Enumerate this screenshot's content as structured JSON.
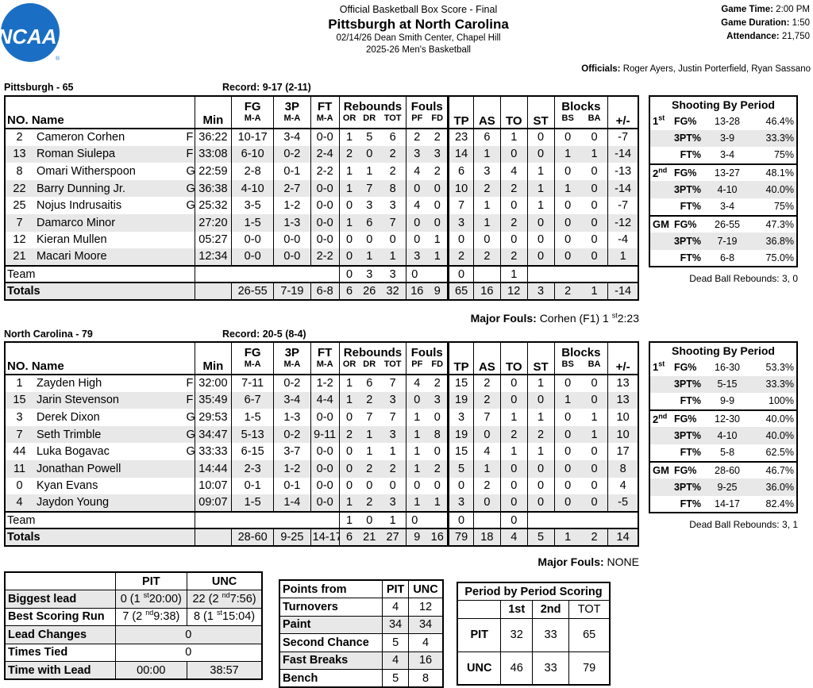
{
  "header": {
    "title_line1": "Official Basketball Box Score - Final",
    "matchup": "Pittsburgh at North Carolina",
    "date_venue": "02/14/26 Dean Smith Center, Chapel Hill",
    "season": "2025-26 Men's Basketball",
    "game_time_label": "Game Time:",
    "game_time": "2:00 PM",
    "duration_label": "Game Duration:",
    "duration": "1:50",
    "attendance_label": "Attendance:",
    "attendance": "21,750",
    "officials_label": "Officials:",
    "officials": "Roger Ayers, Justin Porterfield, Ryan Sassano",
    "logo_text": "NCAA"
  },
  "labels": {
    "no": "NO.",
    "name": "Name",
    "min": "Min",
    "fg": "FG",
    "p3": "3P",
    "ft": "FT",
    "rebounds": "Rebounds",
    "fouls": "Fouls",
    "tp": "TP",
    "as": "AS",
    "to": "TO",
    "st": "ST",
    "blocks": "Blocks",
    "pm": "+/-",
    "ma": "M-A",
    "or": "OR",
    "dr": "DR",
    "tot": "TOT",
    "pf": "PF",
    "fd": "FD",
    "bs": "BS",
    "ba": "BA",
    "team": "Team",
    "totals": "Totals",
    "shooting_by_period": "Shooting By Period",
    "major_fouls": "Major Fouls:",
    "fg_pct": "FG%",
    "p3_pct": "3PT%",
    "ft_pct": "FT%",
    "gm": "GM"
  },
  "teams": [
    {
      "header": "Pittsburgh - 65",
      "record": "Record: 9-17 (2-11)",
      "players": [
        {
          "no": "2",
          "name": "Cameron Corhen",
          "pos": "F",
          "min": "36:22",
          "fg": "10-17",
          "p3": "3-4",
          "ft": "0-0",
          "or": "1",
          "dr": "5",
          "tot": "6",
          "pf": "2",
          "fd": "2",
          "tp": "23",
          "as": "6",
          "to": "1",
          "st": "0",
          "bs": "0",
          "ba": "0",
          "pm": "-7"
        },
        {
          "no": "13",
          "name": "Roman Siulepa",
          "pos": "F",
          "min": "33:08",
          "fg": "6-10",
          "p3": "0-2",
          "ft": "2-4",
          "or": "2",
          "dr": "0",
          "tot": "2",
          "pf": "3",
          "fd": "3",
          "tp": "14",
          "as": "1",
          "to": "0",
          "st": "0",
          "bs": "1",
          "ba": "1",
          "pm": "-14"
        },
        {
          "no": "8",
          "name": "Omari Witherspoon",
          "pos": "G",
          "min": "22:59",
          "fg": "2-8",
          "p3": "0-1",
          "ft": "2-2",
          "or": "1",
          "dr": "1",
          "tot": "2",
          "pf": "4",
          "fd": "2",
          "tp": "6",
          "as": "3",
          "to": "4",
          "st": "1",
          "bs": "0",
          "ba": "0",
          "pm": "-13"
        },
        {
          "no": "22",
          "name": "Barry Dunning Jr.",
          "pos": "G",
          "min": "36:38",
          "fg": "4-10",
          "p3": "2-7",
          "ft": "0-0",
          "or": "1",
          "dr": "7",
          "tot": "8",
          "pf": "0",
          "fd": "0",
          "tp": "10",
          "as": "2",
          "to": "2",
          "st": "1",
          "bs": "1",
          "ba": "0",
          "pm": "-14"
        },
        {
          "no": "25",
          "name": "Nojus Indrusaitis",
          "pos": "G",
          "min": "25:32",
          "fg": "3-5",
          "p3": "1-2",
          "ft": "0-0",
          "or": "0",
          "dr": "3",
          "tot": "3",
          "pf": "4",
          "fd": "0",
          "tp": "7",
          "as": "1",
          "to": "0",
          "st": "1",
          "bs": "0",
          "ba": "0",
          "pm": "-7"
        },
        {
          "no": "7",
          "name": "Damarco Minor",
          "pos": "",
          "min": "27:20",
          "fg": "1-5",
          "p3": "1-3",
          "ft": "0-0",
          "or": "1",
          "dr": "6",
          "tot": "7",
          "pf": "0",
          "fd": "0",
          "tp": "3",
          "as": "1",
          "to": "2",
          "st": "0",
          "bs": "0",
          "ba": "0",
          "pm": "-12"
        },
        {
          "no": "12",
          "name": "Kieran Mullen",
          "pos": "",
          "min": "05:27",
          "fg": "0-0",
          "p3": "0-0",
          "ft": "0-0",
          "or": "0",
          "dr": "0",
          "tot": "0",
          "pf": "0",
          "fd": "1",
          "tp": "0",
          "as": "0",
          "to": "0",
          "st": "0",
          "bs": "0",
          "ba": "0",
          "pm": "-4"
        },
        {
          "no": "21",
          "name": "Macari Moore",
          "pos": "",
          "min": "12:34",
          "fg": "0-0",
          "p3": "0-0",
          "ft": "2-2",
          "or": "0",
          "dr": "1",
          "tot": "1",
          "pf": "3",
          "fd": "1",
          "tp": "2",
          "as": "2",
          "to": "2",
          "st": "0",
          "bs": "0",
          "ba": "0",
          "pm": "1"
        }
      ],
      "team_row": {
        "or": "0",
        "dr": "3",
        "tot": "3",
        "pf": "0",
        "tp": "0",
        "to": "1"
      },
      "totals": {
        "fg": "26-55",
        "p3": "7-19",
        "ft": "6-8",
        "or": "6",
        "dr": "26",
        "tot": "32",
        "pf": "16",
        "fd": "9",
        "tp": "65",
        "as": "16",
        "to": "12",
        "st": "3",
        "bs": "2",
        "ba": "1",
        "pm": "-14"
      },
      "major_fouls": "Corhen (F1) 1",
      "major_fouls_sup": "st",
      "major_fouls_time": "2:23",
      "shooting": [
        {
          "period": "1",
          "sup": "st",
          "fg": "13-28",
          "fg_pct": "46.4%",
          "p3": "3-9",
          "p3_pct": "33.3%",
          "ft": "3-4",
          "ft_pct": "75%"
        },
        {
          "period": "2",
          "sup": "nd",
          "fg": "13-27",
          "fg_pct": "48.1%",
          "p3": "4-10",
          "p3_pct": "40.0%",
          "ft": "3-4",
          "ft_pct": "75%"
        },
        {
          "period": "GM",
          "sup": "",
          "fg": "26-55",
          "fg_pct": "47.3%",
          "p3": "7-19",
          "p3_pct": "36.8%",
          "ft": "6-8",
          "ft_pct": "75.0%"
        }
      ],
      "dead_ball": "Dead Ball Rebounds: 3, 0"
    },
    {
      "header": "North Carolina - 79",
      "record": "Record: 20-5 (8-4)",
      "players": [
        {
          "no": "1",
          "name": "Zayden High",
          "pos": "F",
          "min": "32:00",
          "fg": "7-11",
          "p3": "0-2",
          "ft": "1-2",
          "or": "1",
          "dr": "6",
          "tot": "7",
          "pf": "4",
          "fd": "2",
          "tp": "15",
          "as": "2",
          "to": "0",
          "st": "1",
          "bs": "0",
          "ba": "0",
          "pm": "13"
        },
        {
          "no": "15",
          "name": "Jarin Stevenson",
          "pos": "F",
          "min": "35:49",
          "fg": "6-7",
          "p3": "3-4",
          "ft": "4-4",
          "or": "1",
          "dr": "2",
          "tot": "3",
          "pf": "0",
          "fd": "3",
          "tp": "19",
          "as": "2",
          "to": "0",
          "st": "0",
          "bs": "1",
          "ba": "0",
          "pm": "13"
        },
        {
          "no": "3",
          "name": "Derek Dixon",
          "pos": "G",
          "min": "29:53",
          "fg": "1-5",
          "p3": "1-3",
          "ft": "0-0",
          "or": "0",
          "dr": "7",
          "tot": "7",
          "pf": "1",
          "fd": "0",
          "tp": "3",
          "as": "7",
          "to": "1",
          "st": "1",
          "bs": "0",
          "ba": "1",
          "pm": "10"
        },
        {
          "no": "7",
          "name": "Seth Trimble",
          "pos": "G",
          "min": "34:47",
          "fg": "5-13",
          "p3": "0-2",
          "ft": "9-11",
          "or": "2",
          "dr": "1",
          "tot": "3",
          "pf": "1",
          "fd": "8",
          "tp": "19",
          "as": "0",
          "to": "2",
          "st": "2",
          "bs": "0",
          "ba": "1",
          "pm": "10"
        },
        {
          "no": "44",
          "name": "Luka Bogavac",
          "pos": "G",
          "min": "33:33",
          "fg": "6-15",
          "p3": "3-7",
          "ft": "0-0",
          "or": "0",
          "dr": "1",
          "tot": "1",
          "pf": "1",
          "fd": "0",
          "tp": "15",
          "as": "4",
          "to": "1",
          "st": "1",
          "bs": "0",
          "ba": "0",
          "pm": "17"
        },
        {
          "no": "11",
          "name": "Jonathan Powell",
          "pos": "",
          "min": "14:44",
          "fg": "2-3",
          "p3": "1-2",
          "ft": "0-0",
          "or": "0",
          "dr": "2",
          "tot": "2",
          "pf": "1",
          "fd": "2",
          "tp": "5",
          "as": "1",
          "to": "0",
          "st": "0",
          "bs": "0",
          "ba": "0",
          "pm": "8"
        },
        {
          "no": "0",
          "name": "Kyan Evans",
          "pos": "",
          "min": "10:07",
          "fg": "0-1",
          "p3": "0-1",
          "ft": "0-0",
          "or": "0",
          "dr": "0",
          "tot": "0",
          "pf": "0",
          "fd": "0",
          "tp": "0",
          "as": "2",
          "to": "0",
          "st": "0",
          "bs": "0",
          "ba": "0",
          "pm": "4"
        },
        {
          "no": "4",
          "name": "Jaydon Young",
          "pos": "",
          "min": "09:07",
          "fg": "1-5",
          "p3": "1-4",
          "ft": "0-0",
          "or": "1",
          "dr": "2",
          "tot": "3",
          "pf": "1",
          "fd": "1",
          "tp": "3",
          "as": "0",
          "to": "0",
          "st": "0",
          "bs": "0",
          "ba": "0",
          "pm": "-5"
        }
      ],
      "team_row": {
        "or": "1",
        "dr": "0",
        "tot": "1",
        "pf": "0",
        "tp": "0",
        "to": "0"
      },
      "totals": {
        "fg": "28-60",
        "p3": "9-25",
        "ft": "14-17",
        "or": "6",
        "dr": "21",
        "tot": "27",
        "pf": "9",
        "fd": "16",
        "tp": "79",
        "as": "18",
        "to": "4",
        "st": "5",
        "bs": "1",
        "ba": "2",
        "pm": "14"
      },
      "major_fouls": "NONE",
      "major_fouls_sup": "",
      "major_fouls_time": "",
      "shooting": [
        {
          "period": "1",
          "sup": "st",
          "fg": "16-30",
          "fg_pct": "53.3%",
          "p3": "5-15",
          "p3_pct": "33.3%",
          "ft": "9-9",
          "ft_pct": "100%"
        },
        {
          "period": "2",
          "sup": "nd",
          "fg": "12-30",
          "fg_pct": "40.0%",
          "p3": "4-10",
          "p3_pct": "40.0%",
          "ft": "5-8",
          "ft_pct": "62.5%"
        },
        {
          "period": "GM",
          "sup": "",
          "fg": "28-60",
          "fg_pct": "46.7%",
          "p3": "9-25",
          "p3_pct": "36.0%",
          "ft": "14-17",
          "ft_pct": "82.4%"
        }
      ],
      "dead_ball": "Dead Ball Rebounds: 3, 1"
    }
  ],
  "game_stats": {
    "col_pit": "PIT",
    "col_unc": "UNC",
    "biggest_lead_label": "Biggest lead",
    "biggest_lead_pit": "0 (1",
    "biggest_lead_pit_sup": "st",
    "biggest_lead_pit_time": "20:00)",
    "biggest_lead_unc": "22 (2",
    "biggest_lead_unc_sup": "nd",
    "biggest_lead_unc_time": "7:56)",
    "best_run_label": "Best Scoring Run",
    "best_run_pit": "7 (2",
    "best_run_pit_sup": "nd",
    "best_run_pit_time": "9:38)",
    "best_run_unc": "8 (1",
    "best_run_unc_sup": "st",
    "best_run_unc_time": "15:04)",
    "lead_changes_label": "Lead Changes",
    "lead_changes": "0",
    "times_tied_label": "Times Tied",
    "times_tied": "0",
    "time_lead_label": "Time with Lead",
    "time_lead_pit": "00:00",
    "time_lead_unc": "38:57"
  },
  "points_from": {
    "title": "Points from",
    "col_pit": "PIT",
    "col_unc": "UNC",
    "rows": [
      {
        "label": "Turnovers",
        "pit": "4",
        "unc": "12"
      },
      {
        "label": "Paint",
        "pit": "34",
        "unc": "34"
      },
      {
        "label": "Second Chance",
        "pit": "5",
        "unc": "4"
      },
      {
        "label": "Fast Breaks",
        "pit": "4",
        "unc": "16"
      },
      {
        "label": "Bench",
        "pit": "5",
        "unc": "8"
      }
    ]
  },
  "period_scoring": {
    "title": "Period by Period Scoring",
    "cols": [
      "1st",
      "2nd",
      "TOT"
    ],
    "rows": [
      {
        "team": "PIT",
        "p1": "32",
        "p2": "33",
        "tot": "65"
      },
      {
        "team": "UNC",
        "p1": "46",
        "p2": "33",
        "tot": "79"
      }
    ]
  }
}
